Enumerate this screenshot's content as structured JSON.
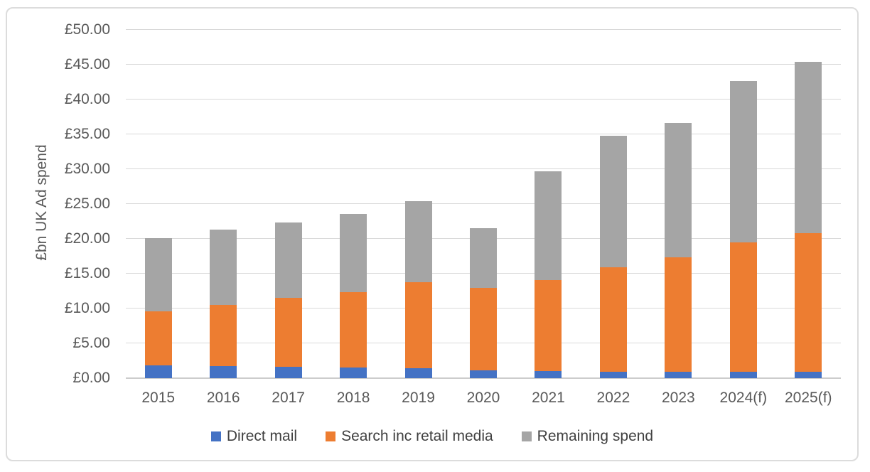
{
  "chart_data": {
    "type": "bar",
    "stacked": true,
    "title": "",
    "ylabel": "£bn UK Ad spend",
    "xlabel": "",
    "ylim": [
      0,
      50
    ],
    "ytick_step": 5,
    "ytick_labels": [
      "£0.00",
      "£5.00",
      "£10.00",
      "£15.00",
      "£20.00",
      "£25.00",
      "£30.00",
      "£35.00",
      "£40.00",
      "£45.00",
      "£50.00"
    ],
    "categories": [
      "2015",
      "2016",
      "2017",
      "2018",
      "2019",
      "2020",
      "2021",
      "2022",
      "2023",
      "2024(f)",
      "2025(f)"
    ],
    "series": [
      {
        "name": "Direct mail",
        "color": "#4472c4",
        "values": [
          1.8,
          1.7,
          1.6,
          1.5,
          1.4,
          1.1,
          1.0,
          0.9,
          0.9,
          0.9,
          0.9
        ]
      },
      {
        "name": "Search inc retail media",
        "color": "#ed7d31",
        "values": [
          7.8,
          8.8,
          9.9,
          10.9,
          12.4,
          11.9,
          13.1,
          15.0,
          16.5,
          18.6,
          19.9
        ]
      },
      {
        "name": "Remaining spend",
        "color": "#a5a5a5",
        "values": [
          10.5,
          10.8,
          10.8,
          11.2,
          11.6,
          8.5,
          15.6,
          18.9,
          19.2,
          23.2,
          24.6
        ]
      }
    ],
    "totals": [
      20.1,
      21.3,
      22.3,
      23.6,
      25.4,
      21.5,
      29.7,
      34.8,
      36.6,
      42.7,
      45.4
    ],
    "legend_position": "bottom",
    "grid": true
  },
  "styles": {
    "gridline_color": "#d9d9d9",
    "axis_line_color": "#cccccc",
    "tick_text_color": "#595959",
    "legend_text_color": "#404040",
    "frame_border_color": "#dcdcdc",
    "background_color": "#ffffff"
  }
}
